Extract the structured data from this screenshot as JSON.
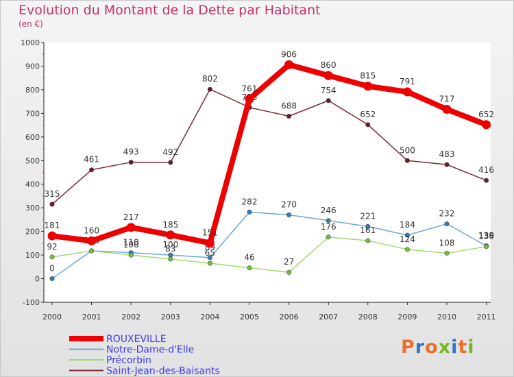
{
  "header": {
    "title": "Evolution du Montant de la Dette par Habitant",
    "subtitle": "(en €)"
  },
  "logo": {
    "text": "Proxiti",
    "colors": [
      "#e8702a",
      "#2b76c9",
      "#e8702a",
      "#7ab51d",
      "#2b76c9",
      "#e8702a",
      "#7ab51d"
    ]
  },
  "chart_data": {
    "type": "line",
    "x": [
      "2000",
      "2001",
      "2002",
      "2003",
      "2004",
      "2005",
      "2006",
      "2007",
      "2008",
      "2009",
      "2010",
      "2011"
    ],
    "ylim": [
      -100,
      1000
    ],
    "yticks": [
      -100,
      0,
      100,
      200,
      300,
      400,
      500,
      600,
      700,
      800,
      900,
      1000
    ],
    "grid": false,
    "legend_position": "bottom-left",
    "series": [
      {
        "name": "ROUXEVILLE",
        "color": "#ee0000",
        "marker": "#ee0000",
        "emphasis": true,
        "values": [
          181,
          160,
          217,
          185,
          151,
          761,
          906,
          860,
          815,
          791,
          717,
          652
        ]
      },
      {
        "name": "Notre-Dame-d'Elle",
        "color": "#6ea6d8",
        "marker": "#2f7fc1",
        "emphasis": false,
        "values": [
          0,
          118,
          110,
          100,
          89,
          282,
          270,
          246,
          221,
          184,
          232,
          139
        ]
      },
      {
        "name": "Précorbin",
        "color": "#9ddb6e",
        "marker": "#73c33a",
        "emphasis": false,
        "values": [
          92,
          118,
          100,
          83,
          65,
          46,
          27,
          176,
          161,
          124,
          108,
          136
        ]
      },
      {
        "name": "Saint-Jean-des-Baisants",
        "color": "#7b2b35",
        "marker": "#6b1b25",
        "emphasis": false,
        "values": [
          315,
          461,
          493,
          492,
          802,
          725,
          688,
          754,
          652,
          500,
          483,
          416
        ]
      }
    ]
  }
}
